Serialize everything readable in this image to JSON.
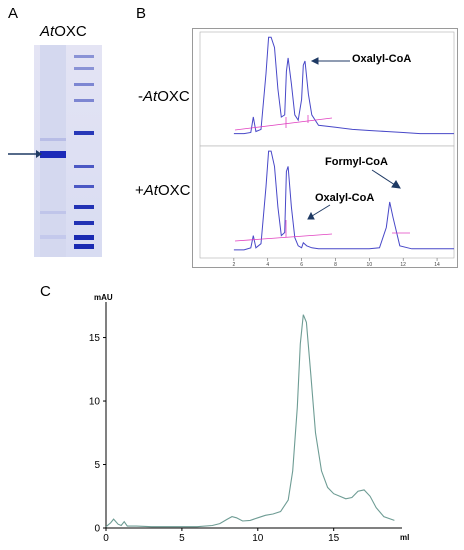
{
  "panels": {
    "a": {
      "letter": "A",
      "title_prefix": "At",
      "title_suffix": "OXC"
    },
    "b": {
      "letter": "B",
      "minus_label_prefix": "-",
      "minus_label_italic": "At",
      "minus_label_suffix": "OXC",
      "plus_label_prefix": "+",
      "plus_label_italic": "At",
      "plus_label_suffix": "OXC",
      "annotations": {
        "top_oxalyl": "Oxalyl-CoA",
        "bottom_formyl": "Formyl-CoA",
        "bottom_oxalyl": "Oxalyl-CoA"
      },
      "x_ticks": [
        "2",
        "4",
        "6",
        "8",
        "10",
        "12",
        "14"
      ]
    },
    "c": {
      "letter": "C"
    }
  },
  "chart_data": [
    {
      "type": "line",
      "id": "hplc-minus-AtOXC",
      "title": "",
      "x": [
        2.0,
        2.6,
        3.0,
        3.15,
        3.3,
        3.6,
        3.9,
        4.05,
        4.2,
        4.4,
        4.6,
        4.8,
        5.0,
        5.1,
        5.2,
        5.4,
        5.6,
        5.8,
        6.0,
        6.1,
        6.2,
        6.4,
        6.6,
        7.0,
        8,
        9,
        10,
        11,
        12,
        13,
        14,
        15
      ],
      "y": [
        0.12,
        0.12,
        0.13,
        0.28,
        0.14,
        0.16,
        0.7,
        1.05,
        1.05,
        0.95,
        0.55,
        0.28,
        0.3,
        0.72,
        0.85,
        0.6,
        0.3,
        0.25,
        0.45,
        0.78,
        0.82,
        0.5,
        0.3,
        0.2,
        0.18,
        0.16,
        0.15,
        0.14,
        0.13,
        0.12,
        0.12,
        0.12
      ],
      "xlim": [
        0,
        15
      ],
      "ylim": [
        0,
        1.1
      ]
    },
    {
      "type": "line",
      "id": "hplc-plus-AtOXC",
      "title": "",
      "x": [
        2.0,
        2.6,
        3.0,
        3.15,
        3.3,
        3.6,
        3.9,
        4.05,
        4.2,
        4.4,
        4.6,
        4.8,
        5.0,
        5.1,
        5.2,
        5.4,
        5.6,
        5.8,
        6.0,
        6.1,
        6.3,
        6.6,
        7.0,
        8,
        9,
        10,
        10.6,
        11.0,
        11.2,
        11.4,
        11.8,
        12.5,
        13,
        14,
        15
      ],
      "y": [
        0.08,
        0.08,
        0.1,
        0.22,
        0.1,
        0.14,
        0.7,
        1.05,
        1.05,
        0.9,
        0.5,
        0.22,
        0.25,
        0.85,
        0.9,
        0.5,
        0.2,
        0.12,
        0.1,
        0.15,
        0.12,
        0.1,
        0.09,
        0.09,
        0.09,
        0.09,
        0.1,
        0.3,
        0.55,
        0.4,
        0.12,
        0.09,
        0.09,
        0.09,
        0.09
      ],
      "xlim": [
        0,
        15
      ],
      "ylim": [
        0,
        1.1
      ]
    },
    {
      "type": "line",
      "id": "size-exclusion",
      "title": "",
      "xlabel": "ml",
      "ylabel": "mAU",
      "x_ticks": [
        0,
        5,
        10,
        15
      ],
      "y_ticks": [
        0,
        5,
        10,
        15
      ],
      "xlim": [
        0,
        19.5
      ],
      "ylim": [
        0,
        17.8
      ],
      "x": [
        0,
        0.3,
        0.5,
        0.8,
        1.0,
        1.2,
        1.4,
        1.6,
        2,
        3,
        4,
        5,
        6,
        7,
        7.5,
        8,
        8.3,
        8.6,
        9.0,
        9.5,
        10,
        10.5,
        11,
        11.5,
        12,
        12.3,
        12.6,
        12.8,
        13.0,
        13.2,
        13.5,
        13.8,
        14.2,
        14.6,
        15.0,
        15.4,
        15.8,
        16.2,
        16.6,
        17.0,
        17.4,
        17.8,
        18.3,
        19.0
      ],
      "y": [
        0.1,
        0.4,
        0.7,
        0.3,
        0.2,
        0.5,
        0.15,
        0.15,
        0.15,
        0.1,
        0.1,
        0.1,
        0.1,
        0.2,
        0.35,
        0.7,
        0.9,
        0.8,
        0.55,
        0.6,
        0.8,
        1.0,
        1.1,
        1.3,
        2.2,
        4.5,
        9.5,
        14.5,
        16.8,
        16.2,
        12.0,
        7.5,
        4.5,
        3.2,
        2.7,
        2.5,
        2.3,
        2.4,
        2.9,
        3.0,
        2.5,
        1.6,
        0.9,
        0.6
      ]
    }
  ]
}
